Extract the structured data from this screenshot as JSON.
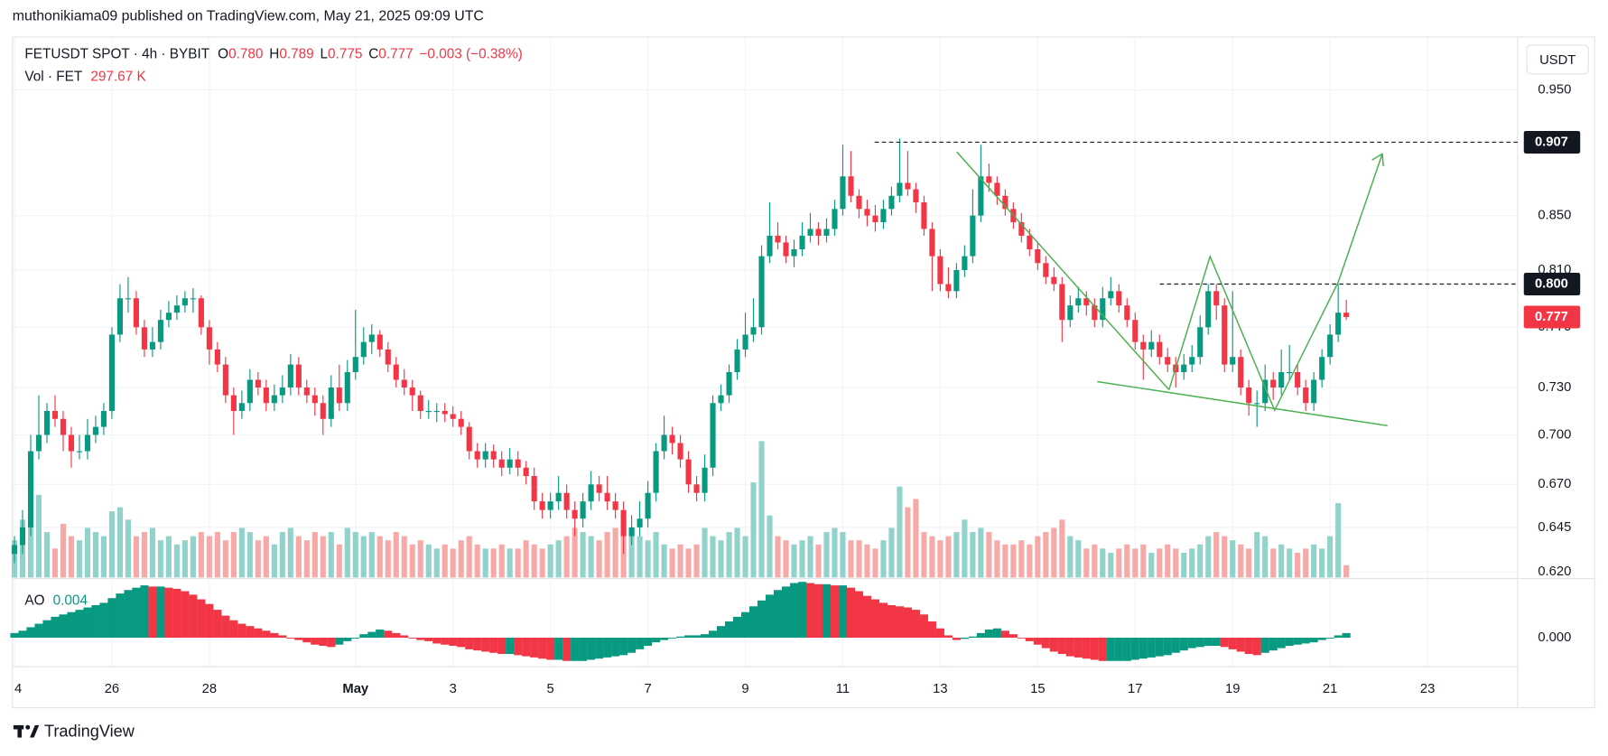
{
  "header": {
    "publisher": "muthonikiama09 published on TradingView.com, May 21, 2025 09:09 UTC",
    "symbol": "FETUSDT SPOT · 4h · BYBIT",
    "o_label": "O",
    "o": "0.780",
    "h_label": "H",
    "h": "0.789",
    "l_label": "L",
    "l": "0.775",
    "c_label": "C",
    "c": "0.777",
    "change": "−0.003 (−0.38%)",
    "vol_label": "Vol · FET",
    "vol": "297.67 K",
    "ao_label": "AO",
    "ao": "0.004",
    "currency": "USDT",
    "brand": "TradingView"
  },
  "chart_data": {
    "type": "candlestick",
    "log_scale": true,
    "grid": true,
    "up_color": "#089981",
    "down_color": "#f23645",
    "volume_up_color": "#92d2cc",
    "volume_down_color": "#f7a9a7",
    "ylim": [
      0.617,
      0.992
    ],
    "yticks": [
      {
        "value": 0.95,
        "label": "0.950"
      },
      {
        "value": 0.85,
        "label": "0.850"
      },
      {
        "value": 0.81,
        "label": "0.810"
      },
      {
        "value": 0.77,
        "label": "0.770"
      },
      {
        "value": 0.73,
        "label": "0.730"
      },
      {
        "value": 0.7,
        "label": "0.700"
      },
      {
        "value": 0.67,
        "label": "0.670"
      },
      {
        "value": 0.645,
        "label": "0.645"
      },
      {
        "value": 0.62,
        "label": "0.620"
      }
    ],
    "xlim": [
      -0.25,
      185.1
    ],
    "xticks": [
      {
        "value": 0,
        "label": "4"
      },
      {
        "value": 12,
        "label": "26"
      },
      {
        "value": 24,
        "label": "28"
      },
      {
        "value": 42,
        "label": "May"
      },
      {
        "value": 54,
        "label": "3"
      },
      {
        "value": 66,
        "label": "5"
      },
      {
        "value": 78,
        "label": "7"
      },
      {
        "value": 90,
        "label": "9"
      },
      {
        "value": 102,
        "label": "11"
      },
      {
        "value": 114,
        "label": "13"
      },
      {
        "value": 126,
        "label": "15"
      },
      {
        "value": 138,
        "label": "17"
      },
      {
        "value": 150,
        "label": "19"
      },
      {
        "value": 162,
        "label": "21"
      },
      {
        "value": 174,
        "label": "23"
      }
    ],
    "levels": [
      {
        "value": 0.907,
        "label": "0.907"
      },
      {
        "value": 0.8,
        "label": "0.800"
      }
    ],
    "last_price": {
      "value": 0.777,
      "label": "0.777"
    },
    "candles": [
      [
        0.63,
        0.64,
        0.625,
        0.635
      ],
      [
        0.635,
        0.655,
        0.63,
        0.645
      ],
      [
        0.645,
        0.7,
        0.64,
        0.69
      ],
      [
        0.69,
        0.725,
        0.685,
        0.7
      ],
      [
        0.7,
        0.72,
        0.695,
        0.715
      ],
      [
        0.715,
        0.725,
        0.705,
        0.71
      ],
      [
        0.71,
        0.715,
        0.69,
        0.7
      ],
      [
        0.7,
        0.705,
        0.68,
        0.69
      ],
      [
        0.69,
        0.7,
        0.685,
        0.69
      ],
      [
        0.69,
        0.71,
        0.685,
        0.7
      ],
      [
        0.7,
        0.712,
        0.695,
        0.705
      ],
      [
        0.705,
        0.72,
        0.7,
        0.715
      ],
      [
        0.715,
        0.77,
        0.71,
        0.765
      ],
      [
        0.765,
        0.8,
        0.76,
        0.79
      ],
      [
        0.79,
        0.805,
        0.78,
        0.79
      ],
      [
        0.79,
        0.795,
        0.765,
        0.77
      ],
      [
        0.77,
        0.775,
        0.75,
        0.755
      ],
      [
        0.755,
        0.77,
        0.75,
        0.76
      ],
      [
        0.76,
        0.782,
        0.755,
        0.775
      ],
      [
        0.775,
        0.788,
        0.77,
        0.78
      ],
      [
        0.78,
        0.792,
        0.775,
        0.785
      ],
      [
        0.785,
        0.795,
        0.78,
        0.79
      ],
      [
        0.79,
        0.797,
        0.78,
        0.79
      ],
      [
        0.79,
        0.792,
        0.765,
        0.77
      ],
      [
        0.77,
        0.775,
        0.745,
        0.755
      ],
      [
        0.755,
        0.76,
        0.74,
        0.745
      ],
      [
        0.745,
        0.75,
        0.72,
        0.725
      ],
      [
        0.725,
        0.73,
        0.7,
        0.715
      ],
      [
        0.715,
        0.728,
        0.71,
        0.72
      ],
      [
        0.72,
        0.742,
        0.715,
        0.735
      ],
      [
        0.735,
        0.74,
        0.725,
        0.73
      ],
      [
        0.73,
        0.735,
        0.715,
        0.72
      ],
      [
        0.72,
        0.732,
        0.715,
        0.725
      ],
      [
        0.725,
        0.738,
        0.72,
        0.73
      ],
      [
        0.73,
        0.752,
        0.725,
        0.745
      ],
      [
        0.745,
        0.75,
        0.725,
        0.73
      ],
      [
        0.73,
        0.735,
        0.72,
        0.725
      ],
      [
        0.725,
        0.73,
        0.712,
        0.72
      ],
      [
        0.72,
        0.725,
        0.7,
        0.71
      ],
      [
        0.71,
        0.738,
        0.705,
        0.73
      ],
      [
        0.73,
        0.745,
        0.715,
        0.72
      ],
      [
        0.72,
        0.748,
        0.715,
        0.74
      ],
      [
        0.74,
        0.782,
        0.735,
        0.75
      ],
      [
        0.75,
        0.77,
        0.745,
        0.76
      ],
      [
        0.76,
        0.772,
        0.752,
        0.765
      ],
      [
        0.765,
        0.768,
        0.75,
        0.755
      ],
      [
        0.755,
        0.76,
        0.74,
        0.745
      ],
      [
        0.745,
        0.75,
        0.73,
        0.735
      ],
      [
        0.735,
        0.742,
        0.725,
        0.73
      ],
      [
        0.73,
        0.735,
        0.715,
        0.725
      ],
      [
        0.725,
        0.728,
        0.71,
        0.715
      ],
      [
        0.715,
        0.722,
        0.71,
        0.715
      ],
      [
        0.715,
        0.72,
        0.708,
        0.715
      ],
      [
        0.715,
        0.72,
        0.708,
        0.713
      ],
      [
        0.713,
        0.718,
        0.705,
        0.71
      ],
      [
        0.71,
        0.715,
        0.7,
        0.705
      ],
      [
        0.705,
        0.708,
        0.685,
        0.69
      ],
      [
        0.69,
        0.695,
        0.68,
        0.685
      ],
      [
        0.685,
        0.695,
        0.68,
        0.69
      ],
      [
        0.69,
        0.694,
        0.68,
        0.685
      ],
      [
        0.685,
        0.69,
        0.675,
        0.68
      ],
      [
        0.68,
        0.692,
        0.676,
        0.685
      ],
      [
        0.685,
        0.69,
        0.675,
        0.68
      ],
      [
        0.68,
        0.684,
        0.67,
        0.675
      ],
      [
        0.675,
        0.68,
        0.655,
        0.66
      ],
      [
        0.66,
        0.665,
        0.65,
        0.655
      ],
      [
        0.655,
        0.665,
        0.65,
        0.66
      ],
      [
        0.66,
        0.675,
        0.655,
        0.665
      ],
      [
        0.665,
        0.67,
        0.65,
        0.655
      ],
      [
        0.655,
        0.66,
        0.64,
        0.65
      ],
      [
        0.65,
        0.665,
        0.645,
        0.66
      ],
      [
        0.66,
        0.678,
        0.655,
        0.67
      ],
      [
        0.67,
        0.675,
        0.66,
        0.665
      ],
      [
        0.665,
        0.675,
        0.655,
        0.66
      ],
      [
        0.66,
        0.665,
        0.65,
        0.655
      ],
      [
        0.655,
        0.66,
        0.63,
        0.64
      ],
      [
        0.64,
        0.652,
        0.635,
        0.645
      ],
      [
        0.645,
        0.66,
        0.64,
        0.65
      ],
      [
        0.65,
        0.672,
        0.645,
        0.665
      ],
      [
        0.665,
        0.695,
        0.66,
        0.69
      ],
      [
        0.69,
        0.712,
        0.685,
        0.7
      ],
      [
        0.7,
        0.705,
        0.688,
        0.695
      ],
      [
        0.695,
        0.7,
        0.68,
        0.685
      ],
      [
        0.685,
        0.69,
        0.665,
        0.67
      ],
      [
        0.67,
        0.675,
        0.66,
        0.665
      ],
      [
        0.665,
        0.688,
        0.66,
        0.68
      ],
      [
        0.68,
        0.725,
        0.675,
        0.72
      ],
      [
        0.72,
        0.732,
        0.715,
        0.725
      ],
      [
        0.725,
        0.745,
        0.72,
        0.74
      ],
      [
        0.74,
        0.762,
        0.735,
        0.755
      ],
      [
        0.755,
        0.78,
        0.75,
        0.765
      ],
      [
        0.765,
        0.79,
        0.76,
        0.77
      ],
      [
        0.77,
        0.828,
        0.765,
        0.82
      ],
      [
        0.82,
        0.86,
        0.815,
        0.835
      ],
      [
        0.835,
        0.845,
        0.825,
        0.83
      ],
      [
        0.83,
        0.835,
        0.815,
        0.82
      ],
      [
        0.82,
        0.832,
        0.812,
        0.825
      ],
      [
        0.825,
        0.845,
        0.82,
        0.835
      ],
      [
        0.835,
        0.852,
        0.83,
        0.84
      ],
      [
        0.84,
        0.845,
        0.828,
        0.835
      ],
      [
        0.835,
        0.848,
        0.83,
        0.84
      ],
      [
        0.84,
        0.862,
        0.835,
        0.855
      ],
      [
        0.855,
        0.905,
        0.85,
        0.88
      ],
      [
        0.88,
        0.9,
        0.86,
        0.865
      ],
      [
        0.865,
        0.87,
        0.848,
        0.855
      ],
      [
        0.855,
        0.862,
        0.842,
        0.85
      ],
      [
        0.85,
        0.858,
        0.838,
        0.845
      ],
      [
        0.845,
        0.862,
        0.84,
        0.855
      ],
      [
        0.855,
        0.872,
        0.85,
        0.865
      ],
      [
        0.865,
        0.91,
        0.86,
        0.875
      ],
      [
        0.875,
        0.9,
        0.865,
        0.87
      ],
      [
        0.87,
        0.875,
        0.852,
        0.86
      ],
      [
        0.86,
        0.865,
        0.835,
        0.84
      ],
      [
        0.84,
        0.845,
        0.795,
        0.82
      ],
      [
        0.82,
        0.825,
        0.795,
        0.8
      ],
      [
        0.8,
        0.812,
        0.79,
        0.795
      ],
      [
        0.795,
        0.815,
        0.79,
        0.81
      ],
      [
        0.81,
        0.828,
        0.805,
        0.82
      ],
      [
        0.82,
        0.87,
        0.815,
        0.85
      ],
      [
        0.85,
        0.905,
        0.845,
        0.88
      ],
      [
        0.88,
        0.89,
        0.868,
        0.875
      ],
      [
        0.875,
        0.88,
        0.858,
        0.865
      ],
      [
        0.865,
        0.87,
        0.85,
        0.855
      ],
      [
        0.855,
        0.86,
        0.84,
        0.845
      ],
      [
        0.845,
        0.852,
        0.83,
        0.835
      ],
      [
        0.835,
        0.84,
        0.82,
        0.825
      ],
      [
        0.825,
        0.83,
        0.81,
        0.815
      ],
      [
        0.815,
        0.82,
        0.8,
        0.805
      ],
      [
        0.805,
        0.812,
        0.795,
        0.8
      ],
      [
        0.8,
        0.805,
        0.76,
        0.775
      ],
      [
        0.775,
        0.792,
        0.77,
        0.785
      ],
      [
        0.785,
        0.798,
        0.78,
        0.79
      ],
      [
        0.79,
        0.795,
        0.778,
        0.785
      ],
      [
        0.785,
        0.79,
        0.77,
        0.775
      ],
      [
        0.775,
        0.798,
        0.77,
        0.79
      ],
      [
        0.79,
        0.805,
        0.785,
        0.795
      ],
      [
        0.795,
        0.8,
        0.78,
        0.785
      ],
      [
        0.785,
        0.79,
        0.77,
        0.775
      ],
      [
        0.775,
        0.78,
        0.755,
        0.76
      ],
      [
        0.76,
        0.765,
        0.735,
        0.755
      ],
      [
        0.755,
        0.768,
        0.75,
        0.76
      ],
      [
        0.76,
        0.765,
        0.745,
        0.75
      ],
      [
        0.75,
        0.756,
        0.74,
        0.745
      ],
      [
        0.745,
        0.75,
        0.73,
        0.74
      ],
      [
        0.74,
        0.752,
        0.735,
        0.745
      ],
      [
        0.745,
        0.758,
        0.74,
        0.75
      ],
      [
        0.75,
        0.778,
        0.745,
        0.77
      ],
      [
        0.77,
        0.8,
        0.765,
        0.795
      ],
      [
        0.795,
        0.8,
        0.775,
        0.785
      ],
      [
        0.785,
        0.79,
        0.74,
        0.745
      ],
      [
        0.745,
        0.795,
        0.74,
        0.75
      ],
      [
        0.75,
        0.755,
        0.725,
        0.73
      ],
      [
        0.73,
        0.735,
        0.712,
        0.72
      ],
      [
        0.72,
        0.728,
        0.705,
        0.72
      ],
      [
        0.72,
        0.745,
        0.715,
        0.735
      ],
      [
        0.735,
        0.74,
        0.722,
        0.73
      ],
      [
        0.73,
        0.755,
        0.725,
        0.74
      ],
      [
        0.74,
        0.758,
        0.735,
        0.74
      ],
      [
        0.74,
        0.745,
        0.725,
        0.73
      ],
      [
        0.73,
        0.735,
        0.715,
        0.72
      ],
      [
        0.72,
        0.74,
        0.715,
        0.735
      ],
      [
        0.735,
        0.755,
        0.73,
        0.75
      ],
      [
        0.75,
        0.772,
        0.745,
        0.765
      ],
      [
        0.765,
        0.8,
        0.76,
        0.78
      ],
      [
        0.78,
        0.789,
        0.775,
        0.777
      ]
    ],
    "volume_lim": [
      0,
      3300
    ],
    "volume": [
      900,
      1400,
      1500,
      2000,
      1100,
      700,
      1300,
      1000,
      900,
      1200,
      1100,
      1000,
      1600,
      1700,
      1400,
      1000,
      1100,
      1200,
      900,
      1000,
      800,
      900,
      1000,
      1100,
      1000,
      1100,
      900,
      1100,
      1200,
      1100,
      900,
      1000,
      800,
      1100,
      1200,
      1000,
      900,
      1100,
      1000,
      1100,
      800,
      1200,
      1100,
      1000,
      1100,
      1000,
      900,
      1100,
      1000,
      800,
      900,
      800,
      700,
      800,
      700,
      900,
      1000,
      800,
      700,
      700,
      800,
      700,
      700,
      900,
      800,
      700,
      800,
      900,
      1000,
      1200,
      1100,
      1000,
      900,
      1100,
      1200,
      1300,
      1200,
      1000,
      900,
      1100,
      800,
      700,
      800,
      700,
      800,
      1200,
      1000,
      900,
      1100,
      1200,
      1000,
      2300,
      3300,
      1500,
      1000,
      900,
      800,
      900,
      1000,
      800,
      1100,
      1200,
      1100,
      900,
      900,
      800,
      700,
      900,
      1200,
      2200,
      1700,
      1900,
      1100,
      1000,
      900,
      1000,
      1100,
      1400,
      1100,
      1200,
      1100,
      900,
      800,
      800,
      900,
      800,
      1000,
      1100,
      1200,
      1400,
      1000,
      900,
      700,
      800,
      700,
      600,
      700,
      800,
      700,
      800,
      600,
      700,
      800,
      700,
      600,
      700,
      800,
      1000,
      1100,
      1000,
      900,
      800,
      700,
      1100,
      1000,
      700,
      800,
      700,
      600,
      700,
      800,
      700,
      1000,
      1800,
      297.67
    ],
    "ao_lim": [
      -0.025,
      0.05
    ],
    "ao_ticks": [
      {
        "value": 0,
        "label": "0.000"
      }
    ],
    "ao": [
      0.004,
      0.006,
      0.009,
      0.012,
      0.015,
      0.018,
      0.02,
      0.022,
      0.024,
      0.026,
      0.028,
      0.03,
      0.034,
      0.038,
      0.041,
      0.043,
      0.045,
      0.044,
      0.044,
      0.043,
      0.042,
      0.04,
      0.037,
      0.033,
      0.029,
      0.024,
      0.019,
      0.015,
      0.012,
      0.01,
      0.008,
      0.006,
      0.004,
      0.002,
      0.0,
      -0.002,
      -0.004,
      -0.006,
      -0.007,
      -0.008,
      -0.006,
      -0.003,
      0.0,
      0.003,
      0.005,
      0.007,
      0.006,
      0.004,
      0.002,
      0.0,
      -0.002,
      -0.003,
      -0.005,
      -0.006,
      -0.007,
      -0.008,
      -0.01,
      -0.011,
      -0.012,
      -0.013,
      -0.014,
      -0.014,
      -0.015,
      -0.016,
      -0.017,
      -0.018,
      -0.019,
      -0.019,
      -0.02,
      -0.02,
      -0.02,
      -0.019,
      -0.018,
      -0.017,
      -0.016,
      -0.015,
      -0.013,
      -0.01,
      -0.007,
      -0.004,
      -0.002,
      0.0,
      0.001,
      0.002,
      0.002,
      0.003,
      0.006,
      0.01,
      0.014,
      0.018,
      0.022,
      0.027,
      0.032,
      0.037,
      0.041,
      0.044,
      0.047,
      0.048,
      0.047,
      0.046,
      0.046,
      0.045,
      0.045,
      0.043,
      0.04,
      0.036,
      0.033,
      0.03,
      0.028,
      0.027,
      0.026,
      0.024,
      0.02,
      0.014,
      0.008,
      0.002,
      -0.002,
      -0.001,
      0.001,
      0.004,
      0.007,
      0.008,
      0.006,
      0.003,
      0.0,
      -0.003,
      -0.006,
      -0.009,
      -0.012,
      -0.014,
      -0.016,
      -0.017,
      -0.018,
      -0.019,
      -0.02,
      -0.02,
      -0.02,
      -0.02,
      -0.019,
      -0.018,
      -0.017,
      -0.016,
      -0.015,
      -0.013,
      -0.011,
      -0.009,
      -0.008,
      -0.007,
      -0.007,
      -0.008,
      -0.01,
      -0.012,
      -0.014,
      -0.015,
      -0.013,
      -0.011,
      -0.009,
      -0.007,
      -0.006,
      -0.005,
      -0.004,
      -0.002,
      0.0,
      0.002,
      0.004
    ]
  }
}
